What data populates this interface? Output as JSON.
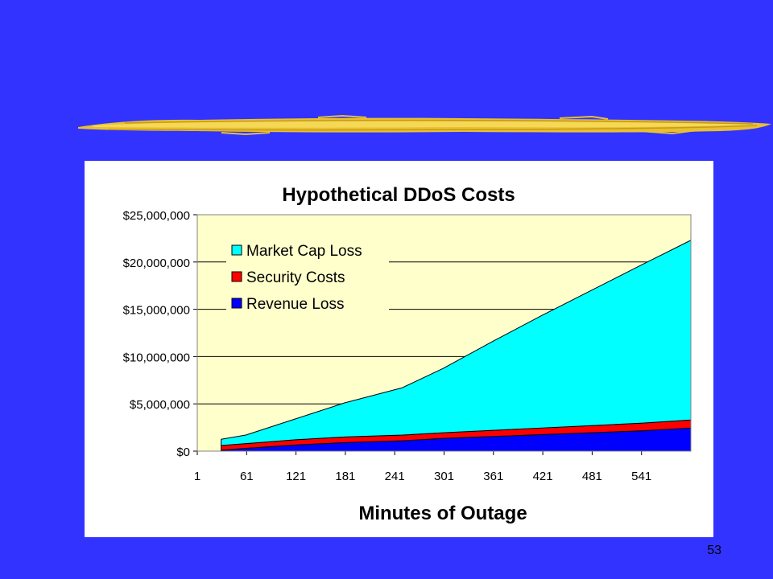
{
  "slide": {
    "number": "53",
    "background_color": "#3333ff",
    "decoration": "yellow-brush-stroke"
  },
  "chart_data": {
    "type": "area",
    "stacked": true,
    "title": "Hypothetical DDoS Costs",
    "xlabel": "Minutes of Outage",
    "ylabel": "",
    "x_ticks": [
      "1",
      "61",
      "121",
      "181",
      "241",
      "301",
      "361",
      "421",
      "481",
      "541"
    ],
    "y_ticks": [
      "$0",
      "$5,000,000",
      "$10,000,000",
      "$15,000,000",
      "$20,000,000",
      "$25,000,000"
    ],
    "xlim": [
      1,
      601
    ],
    "ylim": [
      0,
      25000000
    ],
    "grid": true,
    "legend_position": "top-left",
    "plot_background": "#ffffcc",
    "x": [
      30,
      60,
      120,
      180,
      250,
      300,
      360,
      420,
      480,
      540,
      601
    ],
    "series": [
      {
        "name": "Revenue Loss",
        "color": "#0000ff",
        "values": [
          100000,
          300000,
          650000,
          900000,
          1100000,
          1350000,
          1550000,
          1750000,
          1950000,
          2150000,
          2450000
        ]
      },
      {
        "name": "Security Costs",
        "color": "#ff0000",
        "values": [
          500000,
          500000,
          550000,
          600000,
          600000,
          600000,
          650000,
          700000,
          750000,
          800000,
          850000
        ]
      },
      {
        "name": "Market Cap Loss",
        "color": "#00ffff",
        "values": [
          650000,
          900000,
          2200000,
          3600000,
          5000000,
          6800000,
          9400000,
          11900000,
          14300000,
          16700000,
          19000000
        ]
      }
    ],
    "legend_order": [
      "Market Cap Loss",
      "Security Costs",
      "Revenue Loss"
    ]
  }
}
